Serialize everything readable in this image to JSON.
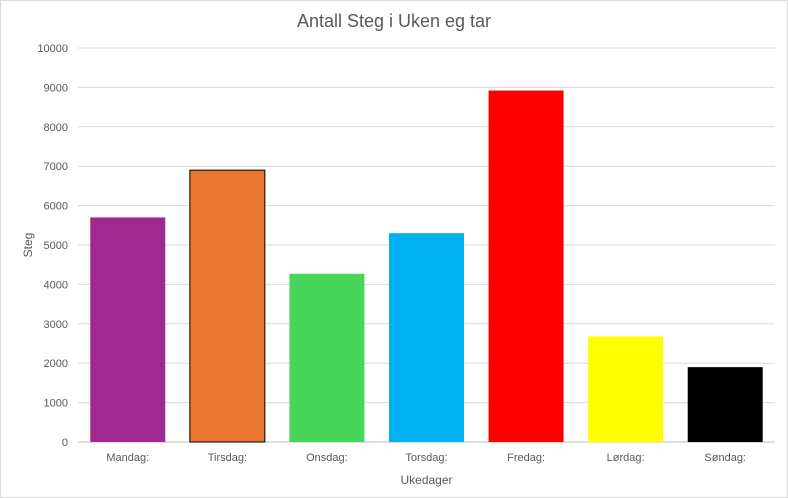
{
  "chart_data": {
    "type": "bar",
    "title": "Antall Steg i Uken eg tar",
    "xlabel": "Ukedager",
    "ylabel": "Steg",
    "ylim": [
      0,
      10000
    ],
    "yticks": [
      0,
      1000,
      2000,
      3000,
      4000,
      5000,
      6000,
      7000,
      8000,
      9000,
      10000
    ],
    "categories": [
      "Mandag:",
      "Tirsdag:",
      "Onsdag:",
      "Torsdag:",
      "Fredag:",
      "Lørdag:",
      "Søndag:"
    ],
    "values": [
      5700,
      6900,
      4270,
      5300,
      8920,
      2680,
      1900
    ],
    "colors": [
      "#a0298f",
      "#e87530",
      "#47d65a",
      "#00b0ef",
      "#ff0000",
      "#ffff00",
      "#000000"
    ],
    "grid": true,
    "legend": "none"
  }
}
